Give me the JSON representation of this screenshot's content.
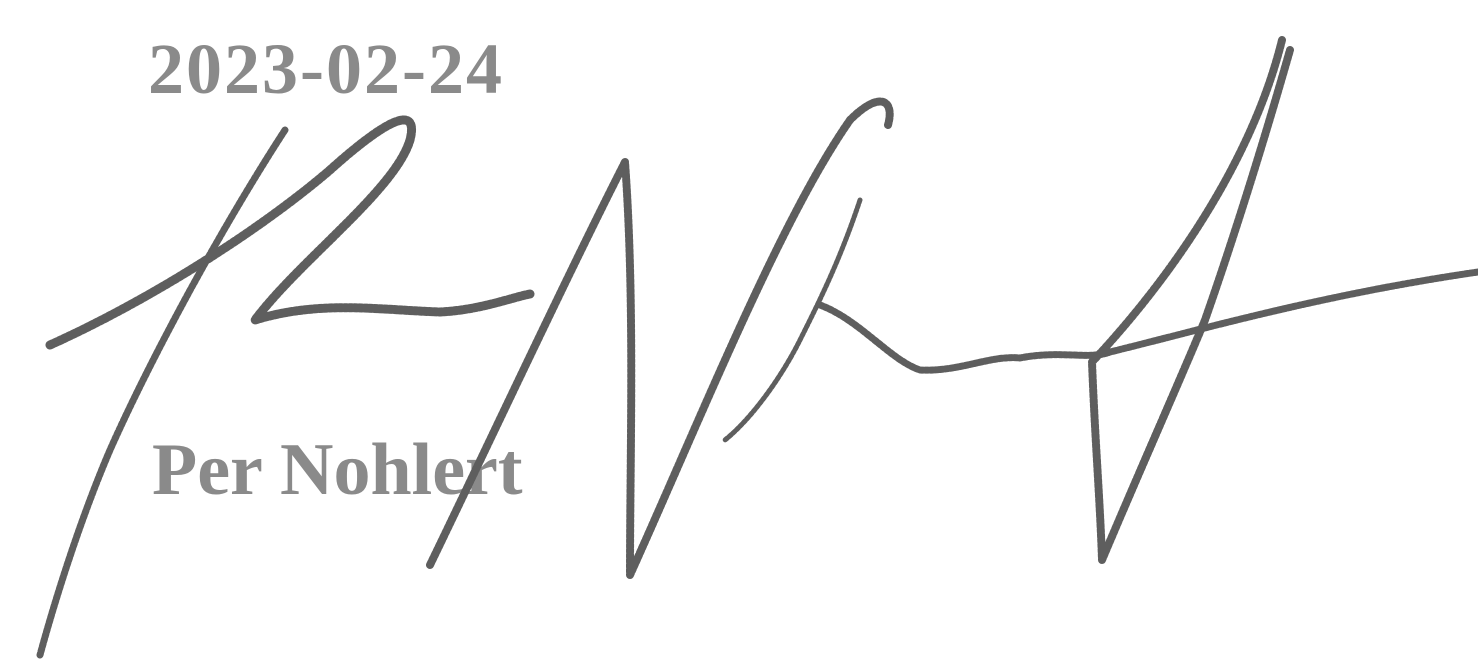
{
  "date": "2023-02-24",
  "name": "Per Nohlert"
}
